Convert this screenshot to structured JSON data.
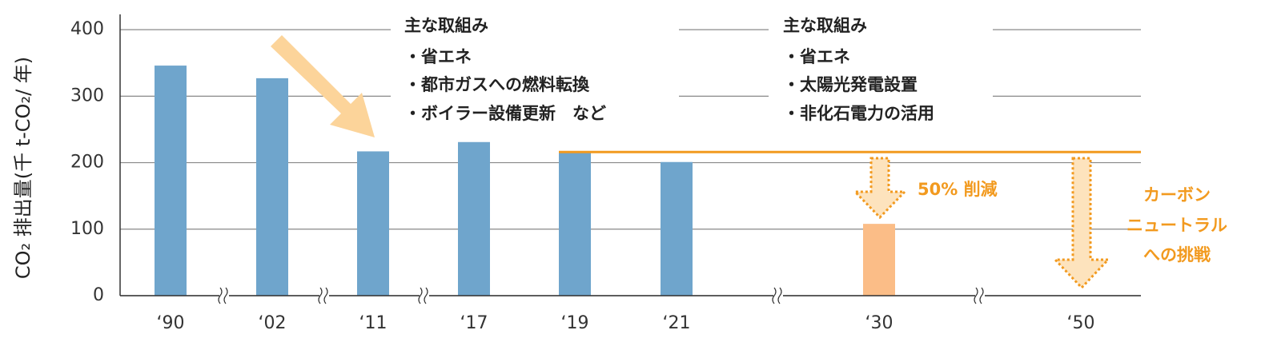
{
  "chart_data": {
    "type": "bar",
    "y_label": "CO₂ 排出量(千 t-CO₂/ 年)",
    "categories": [
      "‘90",
      "‘02",
      "‘11",
      "‘17",
      "‘19",
      "‘21",
      "‘30",
      "‘50"
    ],
    "values": [
      346,
      327,
      217,
      231,
      216,
      201,
      108,
      null
    ],
    "colors": [
      "#6fa5cc",
      "#6fa5cc",
      "#6fa5cc",
      "#6fa5cc",
      "#6fa5cc",
      "#6fa5cc",
      "#fbbd87",
      "#fbbd87"
    ],
    "ylim": [
      0,
      423
    ],
    "yticks": [
      0,
      100,
      200,
      300,
      400
    ],
    "grid": true,
    "target_line": 216,
    "target_color": "#f29a1f",
    "annotations": [
      {
        "lines": [
          "主な取組み",
          "・省エネ",
          "・都市ガスへの燃料転換",
          "・ボイラー設備更新　など"
        ]
      },
      {
        "lines": [
          "主な取組み",
          "・省エネ",
          "・太陽光発電設置",
          "・非化石電力の活用"
        ]
      }
    ],
    "reduction_label": "50% 削減",
    "neutral_label": [
      "カーボン",
      "ニュートラル",
      "への挑戦"
    ]
  }
}
